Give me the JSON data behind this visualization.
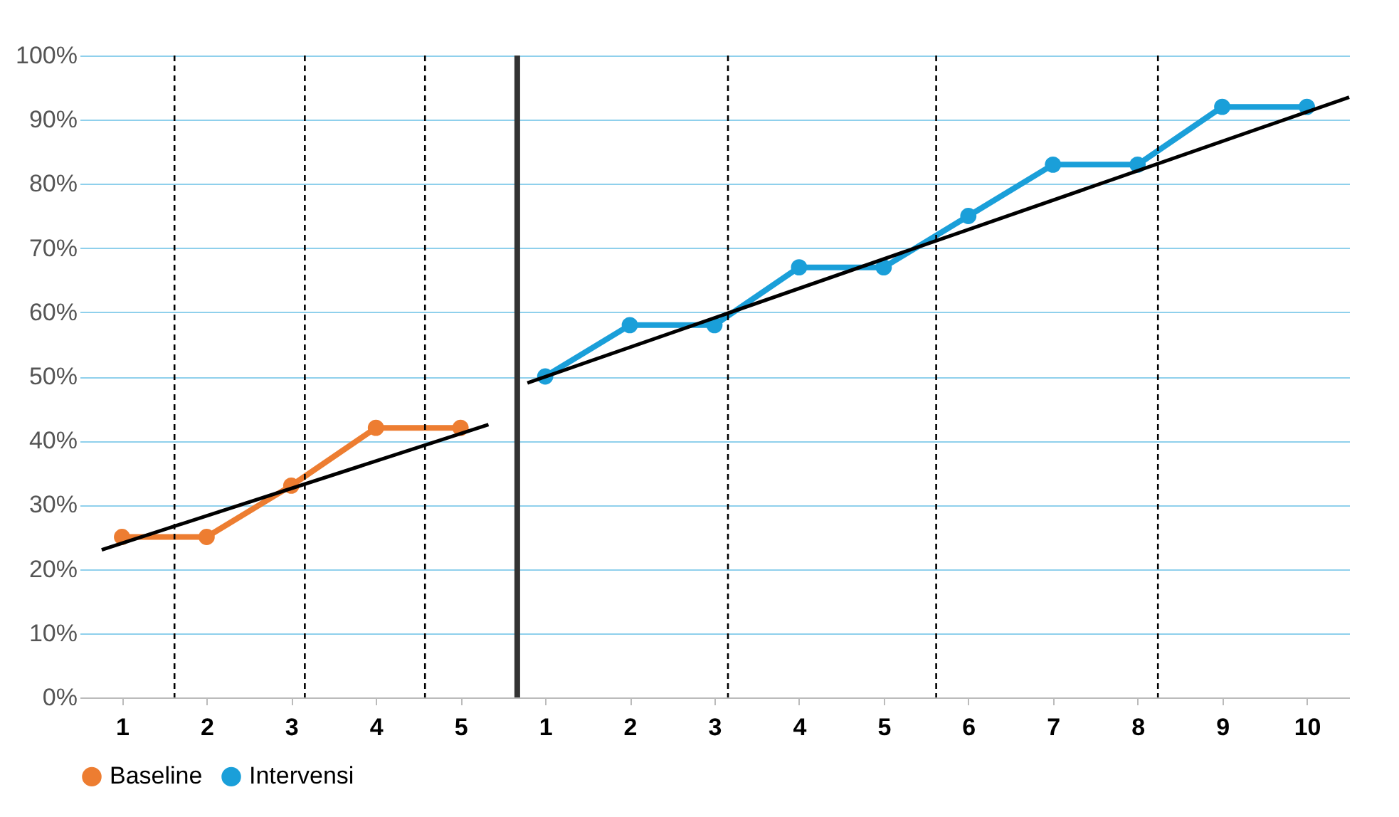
{
  "chart_data": {
    "type": "line",
    "xlim": [
      0.5,
      15.5
    ],
    "xticks": [
      1,
      2,
      3,
      4,
      5
    ],
    "x2lim": [
      -4.5,
      10.5
    ],
    "x2ticks": [
      1,
      2,
      3,
      4,
      5,
      6,
      7,
      8,
      9,
      10
    ],
    "ylim": [
      0,
      100
    ],
    "yticks": [
      {
        "value": 0,
        "label": "0%"
      },
      {
        "value": 10,
        "label": "10%"
      },
      {
        "value": 20,
        "label": "20%"
      },
      {
        "value": 30,
        "label": "30%"
      },
      {
        "value": 40,
        "label": "40%"
      },
      {
        "value": 50,
        "label": "50%"
      },
      {
        "value": 60,
        "label": "60%"
      },
      {
        "value": 70,
        "label": "70%"
      },
      {
        "value": 80,
        "label": "80%"
      },
      {
        "value": 90,
        "label": "90%"
      },
      {
        "value": 100,
        "label": "100%"
      }
    ],
    "series": [
      {
        "name": "Baseline",
        "color": "#ed7d31",
        "x": [
          1,
          2,
          3,
          4,
          5
        ],
        "values": [
          25,
          25,
          33,
          42,
          42
        ],
        "marker": "circle"
      },
      {
        "name": "Intervensi",
        "color": "#1a9fd9",
        "axis": "x2",
        "x": [
          1,
          2,
          3,
          4,
          5,
          6,
          7,
          8,
          9,
          10
        ],
        "values": [
          50,
          58,
          58,
          67,
          67,
          75,
          83,
          83,
          92,
          92
        ],
        "marker": "circle"
      },
      {
        "type": "line",
        "color": "#000000",
        "x": [
          0.76,
          5.33
        ],
        "values": [
          23,
          42.5
        ],
        "marker": "none"
      },
      {
        "type": "line",
        "color": "#000000",
        "axis": "x2",
        "x": [
          0.79,
          10.5
        ],
        "values": [
          49,
          93.5
        ],
        "marker": "none"
      }
    ],
    "ref_lines": [
      {
        "axis": "x",
        "value": 1.62,
        "color": "#000000",
        "line_style": "dashed"
      },
      {
        "axis": "x",
        "value": 3.16,
        "color": "#000000",
        "line_style": "dashed"
      },
      {
        "axis": "x",
        "value": 4.58,
        "color": "#000000",
        "line_style": "dashed"
      },
      {
        "axis": "x",
        "value": 5.67,
        "color": "#333333",
        "line_style": "solid"
      },
      {
        "axis": "x2",
        "value": 3.16,
        "color": "#000000",
        "line_style": "dashed"
      },
      {
        "axis": "x2",
        "value": 5.62,
        "color": "#000000",
        "line_style": "dashed"
      },
      {
        "axis": "x2",
        "value": 8.24,
        "color": "#000000",
        "line_style": "dashed"
      }
    ],
    "grid": "y",
    "legend": "bottom"
  }
}
